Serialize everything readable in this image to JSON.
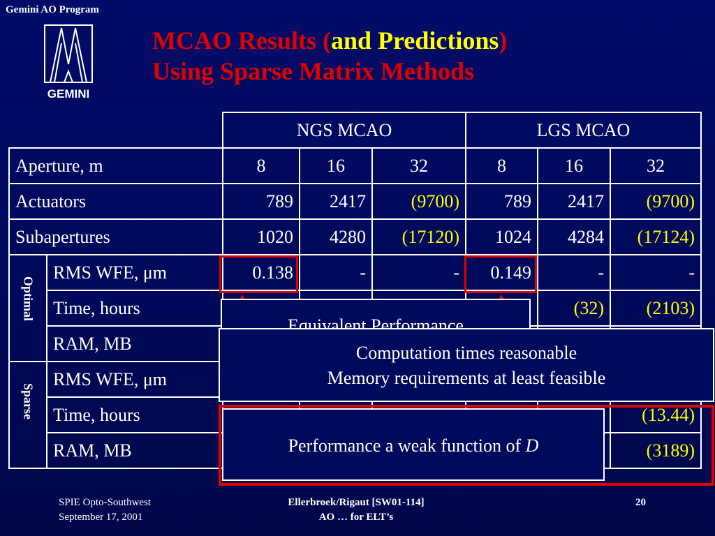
{
  "header": {
    "program": "Gemini AO Program",
    "logo_text": "GEMINI",
    "title_line1_red_a": "MCAO Results (",
    "title_line1_yellow": "and Predictions",
    "title_line1_red_b": ")",
    "title_line2": "Using Sparse Matrix Methods"
  },
  "table": {
    "group_headers": [
      "NGS MCAO",
      "LGS MCAO"
    ],
    "aperture": {
      "label": "Aperture, m",
      "values": [
        "8",
        "16",
        "32",
        "8",
        "16",
        "32"
      ]
    },
    "actuators": {
      "label": "Actuators",
      "values": [
        "789",
        "2417",
        "(9700)",
        "789",
        "2417",
        "(9700)"
      ]
    },
    "subapertures": {
      "label": "Subapertures",
      "values": [
        "1020",
        "4280",
        "(17120)",
        "1024",
        "4284",
        "(17124)"
      ]
    },
    "optimal": {
      "label": "Optimal",
      "rms_wfe": {
        "label": "RMS WFE, μm",
        "values": [
          "0.138",
          "-",
          "-",
          "0.149",
          "-",
          "-"
        ]
      },
      "time": {
        "label": "Time, hours",
        "values": [
          "(32)",
          "(2103)"
        ]
      },
      "ram": {
        "label": "RAM, MB"
      }
    },
    "sparse": {
      "label": "Sparse",
      "rms_wfe": {
        "label": "RMS WFE, μm"
      },
      "time": {
        "label": "Time, hours",
        "values": [
          "(13.44)"
        ]
      },
      "ram": {
        "label": "RAM, MB",
        "values": [
          "(3189)"
        ]
      }
    }
  },
  "overlays": {
    "back_text": "Equivalent Performance",
    "front_line1": "Computation times reasonable",
    "front_line2": "Memory requirements at least feasible",
    "perf_text": "Performance a weak function of ",
    "perf_var": "D"
  },
  "footer": {
    "left1": "SPIE Opto-Southwest",
    "left2": "September 17, 2001",
    "center1": "Ellerbroek/Rigaut [SW01-114]",
    "center2": "AO … for ELT’s",
    "page": "20"
  },
  "colors": {
    "background": "#000a5c",
    "title_red": "#e00000",
    "highlight_yellow": "#ffff00"
  }
}
